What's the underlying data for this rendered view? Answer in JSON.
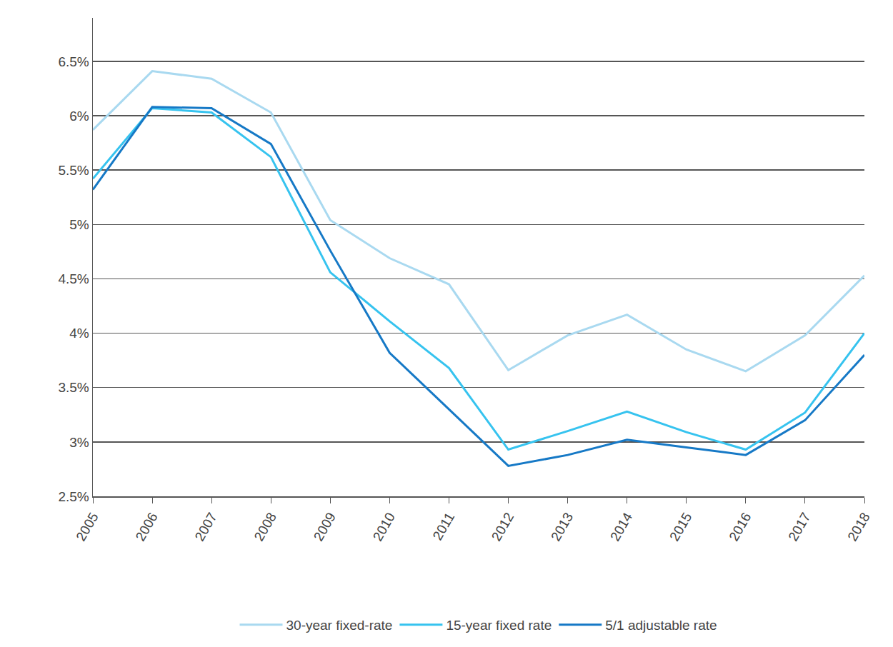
{
  "chart_data": {
    "type": "line",
    "categories": [
      "2005",
      "2006",
      "2007",
      "2008",
      "2009",
      "2010",
      "2011",
      "2012",
      "2013",
      "2014",
      "2015",
      "2016",
      "2017",
      "2018"
    ],
    "series": [
      {
        "name": "30-year fixed-rate",
        "color": "#a9d9f0",
        "values": [
          5.87,
          6.41,
          6.34,
          6.03,
          5.04,
          4.69,
          4.45,
          3.66,
          3.98,
          4.17,
          3.85,
          3.65,
          3.98,
          4.53
        ]
      },
      {
        "name": "15-year fixed rate",
        "color": "#36c3ef",
        "values": [
          5.42,
          6.07,
          6.03,
          5.62,
          4.56,
          4.11,
          3.68,
          2.93,
          3.1,
          3.28,
          3.09,
          2.93,
          3.27,
          4.0
        ]
      },
      {
        "name": "5/1 adjustable rate",
        "color": "#1679c6",
        "values": [
          5.32,
          6.08,
          6.07,
          5.74,
          4.76,
          3.82,
          3.3,
          2.78,
          2.88,
          3.02,
          2.95,
          2.88,
          3.2,
          3.8
        ]
      }
    ],
    "ylim": [
      2.5,
      6.9
    ],
    "yticks": [
      {
        "value": 2.5,
        "label": "2.5%"
      },
      {
        "value": 3,
        "label": "3%"
      },
      {
        "value": 3.5,
        "label": "3.5%"
      },
      {
        "value": 4,
        "label": "4%"
      },
      {
        "value": 4.5,
        "label": "4.5%"
      },
      {
        "value": 5,
        "label": "5%"
      },
      {
        "value": 5.5,
        "label": "5.5%"
      },
      {
        "value": 6,
        "label": "6%"
      },
      {
        "value": 6.5,
        "label": "6.5%"
      }
    ],
    "grid": true,
    "legend": "bottom"
  }
}
